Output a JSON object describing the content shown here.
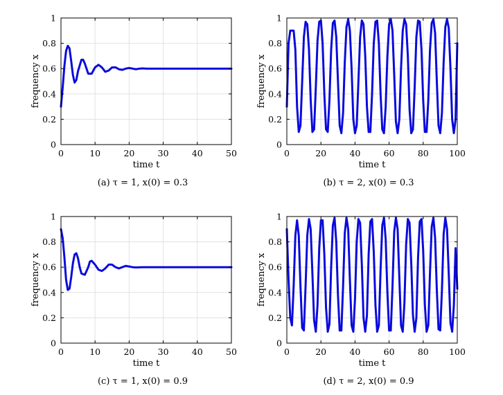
{
  "colors": {
    "series": "#0a0adc",
    "grid": "#e1e1e1",
    "axis": "#000000"
  },
  "chart_data": [
    {
      "type": "line",
      "caption": "(a)  τ = 1, x(0) = 0.3",
      "xlabel": "time t",
      "ylabel": "frequency x",
      "xlim": [
        0,
        50
      ],
      "ylim": [
        0,
        1
      ],
      "xticks": [
        0,
        10,
        20,
        30,
        40,
        50
      ],
      "yticks": [
        0,
        0.2,
        0.4,
        0.6,
        0.8,
        1
      ],
      "xtick_labels": [
        "0",
        "10",
        "20",
        "30",
        "40",
        "50"
      ],
      "ytick_labels": [
        "0",
        "0.2",
        "0.4",
        "0.6",
        "0.8",
        "1"
      ],
      "grid": true,
      "series": [
        {
          "x": [
            0,
            0.5,
            1,
            1.5,
            2,
            2.5,
            3,
            3.5,
            4,
            4.5,
            5,
            6,
            6.5,
            7,
            8,
            9,
            10,
            11,
            12,
            13,
            14,
            15,
            16,
            17,
            18,
            19,
            20,
            21,
            22,
            23,
            24,
            25,
            27,
            30,
            35,
            40,
            45,
            50
          ],
          "y": [
            0.3,
            0.45,
            0.62,
            0.74,
            0.78,
            0.76,
            0.66,
            0.55,
            0.49,
            0.51,
            0.58,
            0.67,
            0.67,
            0.64,
            0.56,
            0.56,
            0.61,
            0.63,
            0.61,
            0.575,
            0.585,
            0.61,
            0.61,
            0.595,
            0.59,
            0.6,
            0.605,
            0.6,
            0.595,
            0.6,
            0.602,
            0.6,
            0.6,
            0.6,
            0.6,
            0.6,
            0.6,
            0.6
          ]
        }
      ]
    },
    {
      "type": "line",
      "caption": "(b)  τ = 2, x(0) = 0.3",
      "xlabel": "time t",
      "ylabel": "frequency x",
      "xlim": [
        0,
        100
      ],
      "ylim": [
        0,
        1
      ],
      "xticks": [
        0,
        20,
        40,
        60,
        80,
        100
      ],
      "yticks": [
        0,
        0.2,
        0.4,
        0.6,
        0.8,
        1
      ],
      "xtick_labels": [
        "0",
        "20",
        "40",
        "60",
        "80",
        "100"
      ],
      "ytick_labels": [
        "0",
        "0.2",
        "0.4",
        "0.6",
        "0.8",
        "1"
      ],
      "grid": true,
      "series": [
        {
          "x": [
            0,
            1,
            2,
            4,
            5,
            6,
            7,
            8,
            9,
            10,
            11,
            12,
            13,
            14,
            15,
            16,
            17,
            18,
            19,
            20,
            21,
            22,
            23,
            24,
            25,
            26,
            27,
            28,
            29,
            30,
            31,
            32,
            33,
            34,
            35,
            36,
            37,
            38,
            39,
            40,
            41,
            42,
            43,
            44,
            45,
            46,
            47,
            48,
            49,
            50,
            51,
            52,
            53,
            54,
            55,
            56,
            57,
            58,
            59,
            60,
            61,
            62,
            63,
            64,
            65,
            66,
            67,
            68,
            69,
            70,
            71,
            72,
            73,
            74,
            75,
            76,
            77,
            78,
            79,
            80,
            81,
            82,
            83,
            84,
            85,
            86,
            87,
            88,
            89,
            90,
            91,
            92,
            93,
            94,
            95,
            96,
            97,
            98,
            99,
            100
          ],
          "y": [
            0.3,
            0.8,
            0.9,
            0.9,
            0.75,
            0.3,
            0.1,
            0.15,
            0.5,
            0.85,
            0.97,
            0.95,
            0.75,
            0.35,
            0.1,
            0.12,
            0.45,
            0.82,
            0.97,
            0.98,
            0.8,
            0.4,
            0.12,
            0.1,
            0.35,
            0.75,
            0.96,
            0.98,
            0.85,
            0.5,
            0.15,
            0.09,
            0.25,
            0.65,
            0.93,
            0.99,
            0.9,
            0.6,
            0.2,
            0.09,
            0.15,
            0.5,
            0.85,
            0.98,
            0.95,
            0.7,
            0.3,
            0.1,
            0.1,
            0.4,
            0.8,
            0.97,
            0.98,
            0.8,
            0.4,
            0.12,
            0.09,
            0.3,
            0.7,
            0.95,
            0.99,
            0.9,
            0.55,
            0.18,
            0.09,
            0.2,
            0.6,
            0.9,
            0.99,
            0.95,
            0.7,
            0.28,
            0.09,
            0.12,
            0.45,
            0.85,
            0.98,
            0.97,
            0.75,
            0.35,
            0.1,
            0.1,
            0.35,
            0.75,
            0.96,
            0.99,
            0.88,
            0.5,
            0.15,
            0.09,
            0.25,
            0.65,
            0.93,
            0.99,
            0.92,
            0.6,
            0.2,
            0.09,
            0.2,
            0.8
          ]
        }
      ]
    },
    {
      "type": "line",
      "caption": "(c)  τ = 1, x(0) = 0.9",
      "xlabel": "time t",
      "ylabel": "frequency x",
      "xlim": [
        0,
        50
      ],
      "ylim": [
        0,
        1
      ],
      "xticks": [
        0,
        10,
        20,
        30,
        40,
        50
      ],
      "yticks": [
        0,
        0.2,
        0.4,
        0.6,
        0.8,
        1
      ],
      "xtick_labels": [
        "0",
        "10",
        "20",
        "30",
        "40",
        "50"
      ],
      "ytick_labels": [
        "0",
        "0.2",
        "0.4",
        "0.6",
        "0.8",
        "1"
      ],
      "grid": true,
      "series": [
        {
          "x": [
            0,
            0.5,
            1,
            1.5,
            2,
            2.5,
            3,
            3.5,
            4,
            4.5,
            5,
            5.5,
            6,
            7,
            8,
            8.5,
            9,
            10,
            11,
            12,
            13,
            14,
            15,
            16,
            17,
            18,
            19,
            20,
            21,
            22,
            24,
            26,
            30,
            35,
            40,
            45,
            50
          ],
          "y": [
            0.9,
            0.83,
            0.68,
            0.5,
            0.42,
            0.43,
            0.52,
            0.63,
            0.7,
            0.71,
            0.67,
            0.6,
            0.55,
            0.54,
            0.6,
            0.645,
            0.65,
            0.62,
            0.58,
            0.57,
            0.59,
            0.62,
            0.62,
            0.6,
            0.59,
            0.6,
            0.61,
            0.605,
            0.6,
            0.598,
            0.6,
            0.6,
            0.6,
            0.6,
            0.6,
            0.6,
            0.6
          ]
        }
      ]
    },
    {
      "type": "line",
      "caption": "(d)  τ = 2, x(0) = 0.9",
      "xlabel": "time t",
      "ylabel": "frequency x",
      "xlim": [
        0,
        100
      ],
      "ylim": [
        0,
        1
      ],
      "xticks": [
        0,
        20,
        40,
        60,
        80,
        100
      ],
      "yticks": [
        0,
        0.2,
        0.4,
        0.6,
        0.8,
        1
      ],
      "xtick_labels": [
        "0",
        "20",
        "40",
        "60",
        "80",
        "100"
      ],
      "ytick_labels": [
        "0",
        "0.2",
        "0.4",
        "0.6",
        "0.8",
        "1"
      ],
      "grid": true,
      "series": [
        {
          "x": [
            0,
            1,
            2,
            3,
            4,
            5,
            6,
            7,
            8,
            9,
            10,
            11,
            12,
            13,
            14,
            15,
            16,
            17,
            18,
            19,
            20,
            21,
            22,
            23,
            24,
            25,
            26,
            27,
            28,
            29,
            30,
            31,
            32,
            33,
            34,
            35,
            36,
            37,
            38,
            39,
            40,
            41,
            42,
            43,
            44,
            45,
            46,
            47,
            48,
            49,
            50,
            51,
            52,
            53,
            54,
            55,
            56,
            57,
            58,
            59,
            60,
            61,
            62,
            63,
            64,
            65,
            66,
            67,
            68,
            69,
            70,
            71,
            72,
            73,
            74,
            75,
            76,
            77,
            78,
            79,
            80,
            81,
            82,
            83,
            84,
            85,
            86,
            87,
            88,
            89,
            90,
            91,
            92,
            93,
            94,
            95,
            96,
            97,
            98,
            99,
            100
          ],
          "y": [
            0.9,
            0.5,
            0.2,
            0.14,
            0.45,
            0.85,
            0.97,
            0.85,
            0.45,
            0.12,
            0.1,
            0.45,
            0.85,
            0.98,
            0.9,
            0.55,
            0.18,
            0.09,
            0.3,
            0.75,
            0.97,
            0.97,
            0.7,
            0.28,
            0.09,
            0.15,
            0.6,
            0.93,
            0.99,
            0.8,
            0.38,
            0.1,
            0.1,
            0.45,
            0.87,
            0.99,
            0.9,
            0.5,
            0.14,
            0.09,
            0.35,
            0.8,
            0.98,
            0.95,
            0.62,
            0.2,
            0.09,
            0.22,
            0.7,
            0.96,
            0.98,
            0.72,
            0.3,
            0.09,
            0.14,
            0.58,
            0.93,
            0.99,
            0.82,
            0.4,
            0.1,
            0.1,
            0.45,
            0.88,
            0.99,
            0.9,
            0.52,
            0.14,
            0.09,
            0.32,
            0.78,
            0.98,
            0.95,
            0.63,
            0.22,
            0.09,
            0.2,
            0.68,
            0.96,
            0.98,
            0.73,
            0.3,
            0.09,
            0.14,
            0.56,
            0.92,
            0.99,
            0.83,
            0.42,
            0.11,
            0.1,
            0.42,
            0.86,
            0.99,
            0.9,
            0.55,
            0.16,
            0.09,
            0.3,
            0.75,
            0.43
          ]
        }
      ]
    }
  ]
}
